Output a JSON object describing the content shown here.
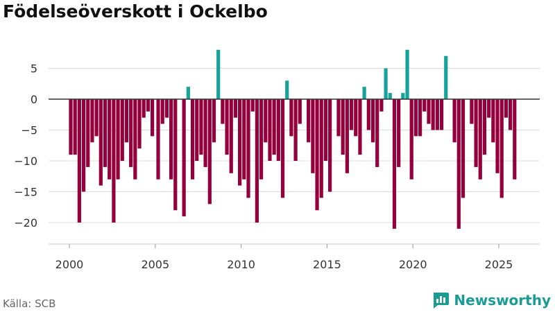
{
  "title": "Födelseöverskott i Ockelbo",
  "source": "Källa: SCB",
  "brand": "Newsworthy",
  "colors": {
    "negative": "#94003b",
    "positive": "#17a39b",
    "grid": "#dddddd",
    "zero_line": "#333333",
    "text": "#333333",
    "brand": "#1a9c94"
  },
  "chart_data": {
    "type": "bar",
    "title": "Födelseöverskott i Ockelbo",
    "xlabel": "",
    "ylabel": "",
    "frequency": "monthly, irregular (one bar per reported period)",
    "xlim": [
      1999.0,
      2027.4
    ],
    "ylim": [
      -24,
      9.5
    ],
    "x_ticks": [
      2000,
      2005,
      2010,
      2015,
      2020,
      2025
    ],
    "y_ticks": [
      5,
      0,
      -5,
      -10,
      -15,
      -20
    ],
    "gridlines": true,
    "points": [
      {
        "x": 2000.08,
        "y": -9
      },
      {
        "x": 2000.33,
        "y": -9
      },
      {
        "x": 2000.58,
        "y": -20
      },
      {
        "x": 2000.83,
        "y": -15
      },
      {
        "x": 2001.08,
        "y": -11
      },
      {
        "x": 2001.33,
        "y": -7
      },
      {
        "x": 2001.58,
        "y": -6
      },
      {
        "x": 2001.83,
        "y": -14
      },
      {
        "x": 2002.08,
        "y": -11
      },
      {
        "x": 2002.33,
        "y": -13
      },
      {
        "x": 2002.58,
        "y": -20
      },
      {
        "x": 2002.83,
        "y": -13
      },
      {
        "x": 2003.08,
        "y": -10
      },
      {
        "x": 2003.33,
        "y": -7
      },
      {
        "x": 2003.58,
        "y": -11
      },
      {
        "x": 2003.83,
        "y": -13
      },
      {
        "x": 2004.08,
        "y": -8
      },
      {
        "x": 2004.33,
        "y": -3
      },
      {
        "x": 2004.58,
        "y": -2
      },
      {
        "x": 2004.83,
        "y": -6
      },
      {
        "x": 2005.17,
        "y": -13
      },
      {
        "x": 2005.42,
        "y": -4
      },
      {
        "x": 2005.67,
        "y": -3
      },
      {
        "x": 2005.92,
        "y": -13
      },
      {
        "x": 2006.17,
        "y": -18
      },
      {
        "x": 2006.67,
        "y": -19
      },
      {
        "x": 2006.92,
        "y": 2
      },
      {
        "x": 2007.17,
        "y": -13
      },
      {
        "x": 2007.42,
        "y": -10
      },
      {
        "x": 2007.67,
        "y": -9
      },
      {
        "x": 2007.92,
        "y": -11
      },
      {
        "x": 2008.17,
        "y": -17
      },
      {
        "x": 2008.42,
        "y": -7
      },
      {
        "x": 2008.67,
        "y": 8
      },
      {
        "x": 2008.92,
        "y": -4
      },
      {
        "x": 2009.17,
        "y": -9
      },
      {
        "x": 2009.42,
        "y": -12
      },
      {
        "x": 2009.67,
        "y": -3
      },
      {
        "x": 2009.92,
        "y": -14
      },
      {
        "x": 2010.17,
        "y": -13
      },
      {
        "x": 2010.42,
        "y": -16
      },
      {
        "x": 2010.67,
        "y": -2
      },
      {
        "x": 2010.92,
        "y": -20
      },
      {
        "x": 2011.17,
        "y": -13
      },
      {
        "x": 2011.42,
        "y": -7
      },
      {
        "x": 2011.67,
        "y": -10
      },
      {
        "x": 2011.92,
        "y": -9
      },
      {
        "x": 2012.17,
        "y": -10
      },
      {
        "x": 2012.42,
        "y": -16
      },
      {
        "x": 2012.67,
        "y": 3
      },
      {
        "x": 2012.92,
        "y": -6
      },
      {
        "x": 2013.17,
        "y": -10
      },
      {
        "x": 2013.42,
        "y": -4
      },
      {
        "x": 2013.92,
        "y": -7
      },
      {
        "x": 2014.17,
        "y": -12
      },
      {
        "x": 2014.42,
        "y": -18
      },
      {
        "x": 2014.67,
        "y": -16
      },
      {
        "x": 2014.92,
        "y": -10
      },
      {
        "x": 2015.17,
        "y": -15
      },
      {
        "x": 2015.67,
        "y": -6
      },
      {
        "x": 2015.92,
        "y": -9
      },
      {
        "x": 2016.17,
        "y": -12
      },
      {
        "x": 2016.42,
        "y": -5
      },
      {
        "x": 2016.67,
        "y": -6
      },
      {
        "x": 2016.92,
        "y": -9
      },
      {
        "x": 2017.17,
        "y": 2
      },
      {
        "x": 2017.42,
        "y": -5
      },
      {
        "x": 2017.67,
        "y": -7
      },
      {
        "x": 2017.92,
        "y": -11
      },
      {
        "x": 2018.17,
        "y": -2
      },
      {
        "x": 2018.42,
        "y": 5
      },
      {
        "x": 2018.67,
        "y": 1
      },
      {
        "x": 2018.92,
        "y": -21
      },
      {
        "x": 2019.17,
        "y": -11
      },
      {
        "x": 2019.42,
        "y": 1
      },
      {
        "x": 2019.67,
        "y": 8
      },
      {
        "x": 2019.92,
        "y": -13
      },
      {
        "x": 2020.17,
        "y": -6
      },
      {
        "x": 2020.42,
        "y": -6
      },
      {
        "x": 2020.67,
        "y": -2
      },
      {
        "x": 2020.92,
        "y": -4
      },
      {
        "x": 2021.17,
        "y": -5
      },
      {
        "x": 2021.42,
        "y": -5
      },
      {
        "x": 2021.67,
        "y": -5
      },
      {
        "x": 2021.92,
        "y": 7
      },
      {
        "x": 2022.42,
        "y": -7
      },
      {
        "x": 2022.67,
        "y": -21
      },
      {
        "x": 2022.92,
        "y": -16
      },
      {
        "x": 2023.42,
        "y": -4
      },
      {
        "x": 2023.67,
        "y": -11
      },
      {
        "x": 2023.92,
        "y": -13
      },
      {
        "x": 2024.17,
        "y": -9
      },
      {
        "x": 2024.42,
        "y": -3
      },
      {
        "x": 2024.67,
        "y": -7
      },
      {
        "x": 2024.92,
        "y": -12
      },
      {
        "x": 2025.17,
        "y": -16
      },
      {
        "x": 2025.42,
        "y": -3
      },
      {
        "x": 2025.67,
        "y": -5
      },
      {
        "x": 2025.92,
        "y": -13
      }
    ]
  }
}
